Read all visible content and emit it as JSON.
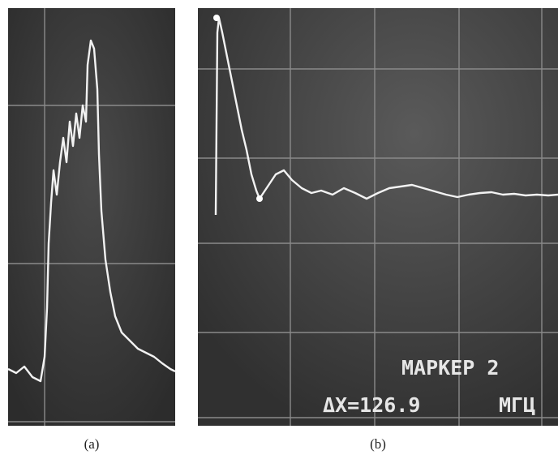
{
  "panels": [
    {
      "caption": "(a)"
    },
    {
      "caption": "(b)",
      "marker": "МАРКЕР 2",
      "delta": "ΔX=126.9",
      "unit": "МГЦ"
    }
  ]
}
